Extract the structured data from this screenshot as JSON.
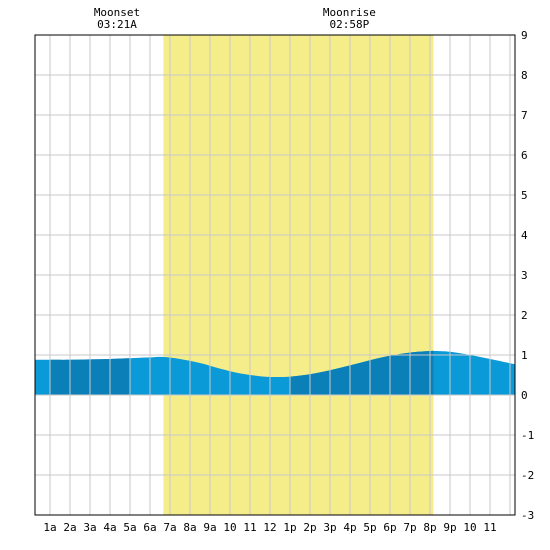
{
  "chart_data": {
    "type": "area",
    "title": "",
    "xlabel": "",
    "ylabel": "",
    "x_range_hours": [
      -0.75,
      23.25
    ],
    "ylim": [
      -3,
      9
    ],
    "y_ticks": [
      -3,
      -2,
      -1,
      0,
      1,
      2,
      3,
      4,
      5,
      6,
      7,
      8,
      9
    ],
    "x_tick_labels": [
      "1a",
      "2a",
      "3a",
      "4a",
      "5a",
      "6a",
      "7a",
      "8a",
      "9a",
      "10",
      "11",
      "12",
      "1p",
      "2p",
      "3p",
      "4p",
      "5p",
      "6p",
      "7p",
      "8p",
      "9p",
      "10",
      "11"
    ],
    "grid": true,
    "daylight": {
      "start_hour": 5.67,
      "end_hour": 19.17,
      "color": "#f5ec8a"
    },
    "moon_events": [
      {
        "label": "Moonset",
        "time": "03:21A",
        "hour": 3.35
      },
      {
        "label": "Moonrise",
        "time": "02:58P",
        "hour": 14.97
      }
    ],
    "tide_series": {
      "name": "",
      "x_hours": [
        -0.75,
        0,
        1,
        2,
        3,
        4,
        5,
        5.7,
        6.5,
        7.5,
        8.5,
        9.5,
        10.5,
        11.2,
        12,
        13,
        14,
        15,
        16,
        17,
        18,
        19,
        19.3,
        20,
        21,
        22,
        23.25
      ],
      "values": [
        0.88,
        0.88,
        0.88,
        0.89,
        0.9,
        0.92,
        0.94,
        0.95,
        0.9,
        0.8,
        0.66,
        0.54,
        0.47,
        0.45,
        0.46,
        0.52,
        0.62,
        0.74,
        0.87,
        0.98,
        1.06,
        1.1,
        1.1,
        1.08,
        1.0,
        0.9,
        0.77
      ],
      "light_color": "#0a9ad8",
      "dark_color": "#0a7fb8",
      "dark_bands": [
        [
          0,
          4
        ],
        [
          12,
          19.17
        ]
      ]
    }
  }
}
